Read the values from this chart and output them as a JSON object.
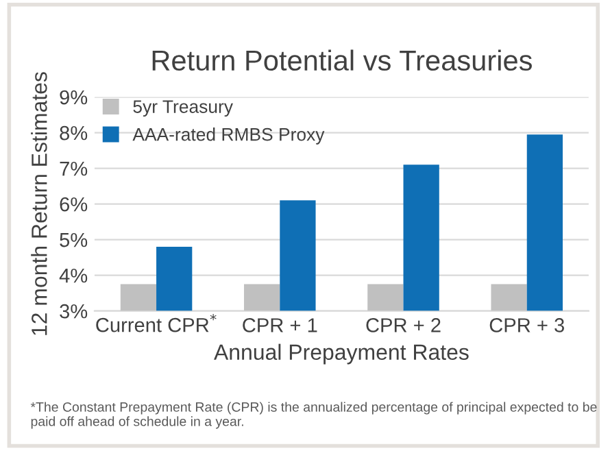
{
  "chart_data": {
    "type": "bar",
    "title": "Return Potential vs Treasuries",
    "xlabel": "Annual Prepayment Rates",
    "ylabel": "12 month Return Estimates",
    "categories": [
      "Current CPR$^{*}$",
      "CPR + 1",
      "CPR + 2",
      "CPR + 3"
    ],
    "series": [
      {
        "name": "5yr Treasury",
        "color": "#c0c0c0",
        "values": [
          3.75,
          3.75,
          3.75,
          3.75
        ]
      },
      {
        "name": "AAA-rated RMBS Proxy",
        "color": "#0f6fb5",
        "values": [
          4.8,
          6.1,
          7.1,
          7.95
        ]
      }
    ],
    "ylim": [
      3,
      9
    ],
    "yticks": [
      {
        "value": 3,
        "label": "3%"
      },
      {
        "value": 4,
        "label": "4%"
      },
      {
        "value": 5,
        "label": "5%"
      },
      {
        "value": 6,
        "label": "6%"
      },
      {
        "value": 7,
        "label": "7%"
      },
      {
        "value": 8,
        "label": "8%"
      },
      {
        "value": 9,
        "label": "9%"
      }
    ],
    "grid": "y",
    "legend": "top left",
    "annotations": [
      "*The Constant Prepayment Rate (CPR) is the annualized percentage of principal expected to be paid off ahead of schedule in a year."
    ]
  }
}
